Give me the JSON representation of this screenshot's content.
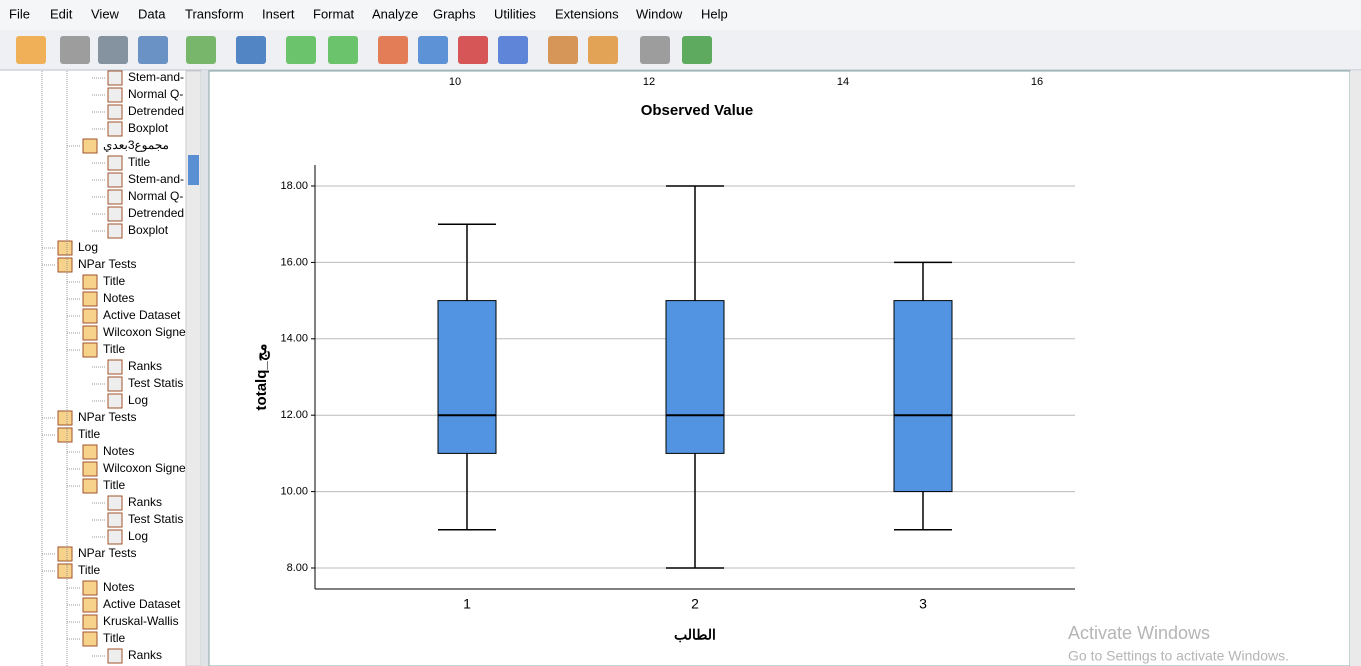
{
  "menu": [
    "File",
    "Edit",
    "View",
    "Data",
    "Transform",
    "Insert",
    "Format",
    "Analyze",
    "Graphs",
    "Utilities",
    "Extensions",
    "Window",
    "Help"
  ],
  "outline": [
    "Stem-and-",
    "Normal Q-",
    "Detrended",
    "Boxplot",
    "مجموع3بعدي",
    "Title",
    "Stem-and-",
    "Normal Q-",
    "Detrended",
    "Boxplot",
    "Log",
    "NPar Tests",
    "Title",
    "Notes",
    "Active Dataset",
    "Wilcoxon Signe",
    "Title",
    "Ranks",
    "Test Statis",
    "Log",
    "NPar Tests",
    "Title",
    "Notes",
    "Wilcoxon Signe",
    "Title",
    "Ranks",
    "Test Statis",
    "Log",
    "NPar Tests",
    "Title",
    "Notes",
    "Active Dataset",
    "Kruskal-Wallis",
    "Title",
    "Ranks"
  ],
  "previous_chart": {
    "xticks": [
      10,
      12,
      14,
      16
    ],
    "x_label": "Observed Value"
  },
  "chart_data": {
    "type": "boxplot",
    "x_label": "الطالب",
    "y_label": "totalq_مج",
    "categories": [
      "1",
      "2",
      "3"
    ],
    "min": [
      9,
      8,
      9
    ],
    "q1": [
      11,
      11,
      10
    ],
    "median": [
      12,
      12,
      12
    ],
    "q3": [
      15,
      15,
      15
    ],
    "max": [
      17,
      18,
      16
    ],
    "color": "#5294e2",
    "ylim": [
      7.45,
      18.55
    ],
    "yticks": [
      {
        "value": 8,
        "label": "8.00"
      },
      {
        "value": 10,
        "label": "10.00"
      },
      {
        "value": 12,
        "label": "12.00"
      },
      {
        "value": 14,
        "label": "14.00"
      },
      {
        "value": 16,
        "label": "16.00"
      },
      {
        "value": 18,
        "label": "18.00"
      }
    ],
    "grid": true
  },
  "watermark": {
    "title": "Activate Windows",
    "subtitle": "Go to Settings to activate Windows."
  }
}
